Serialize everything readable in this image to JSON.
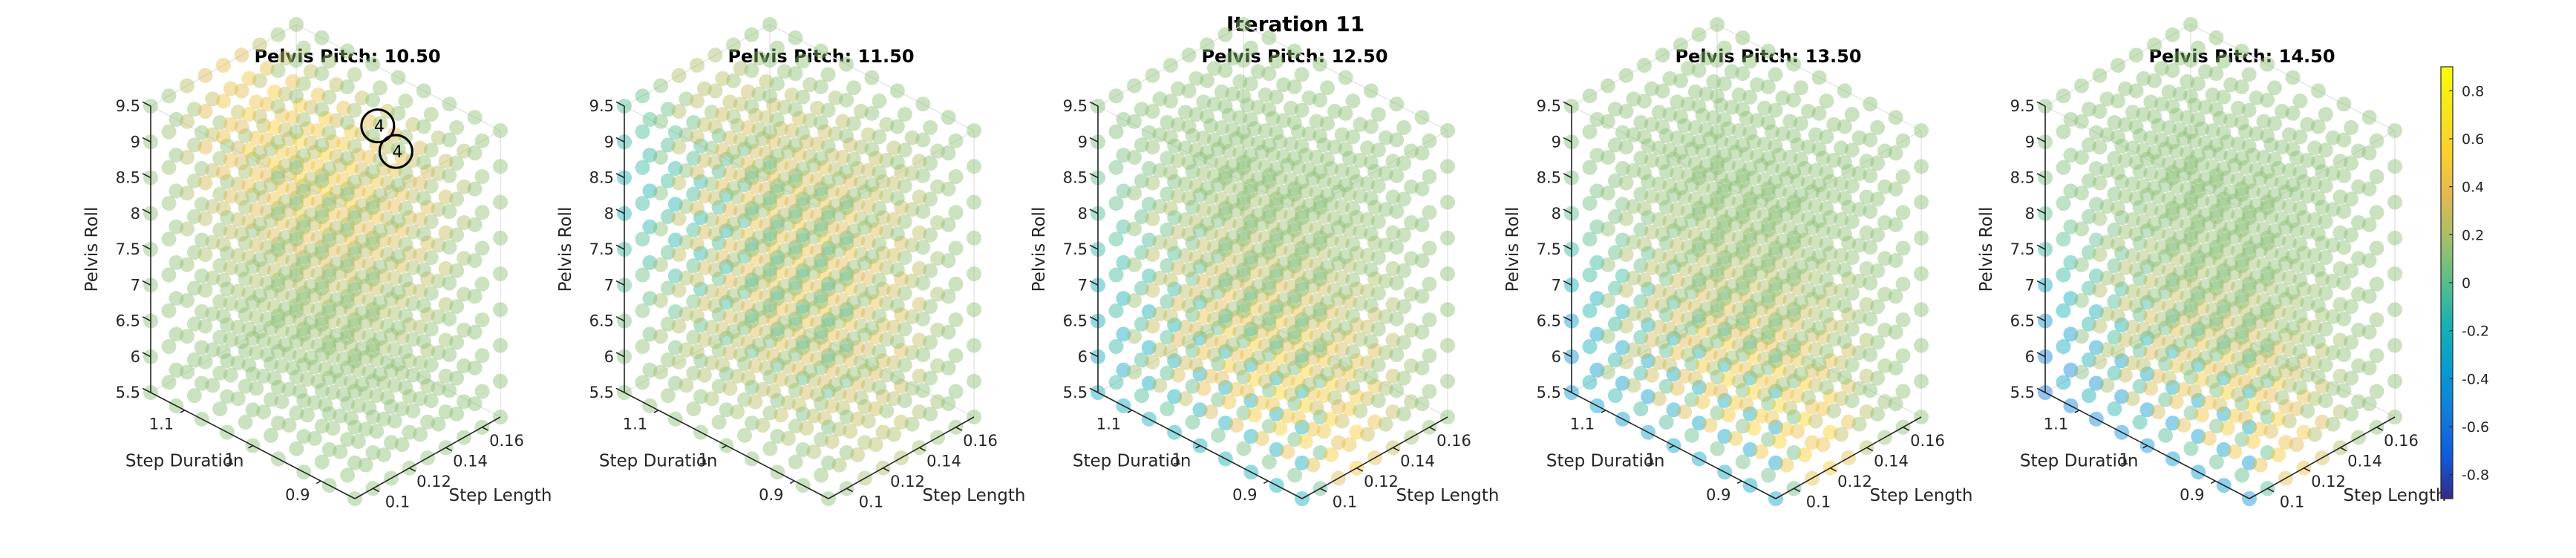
{
  "figure_title": "Iteration 11",
  "colors": {
    "colormap": "parula",
    "marker_alpha": 0.45,
    "axis": "#262626",
    "grid": "#e6e6e6"
  },
  "chart_data": [
    {
      "type": "scatter3d",
      "title": "Pelvis Pitch: 10.50",
      "xlabel": "Step Length",
      "ylabel": "Step Duration",
      "zlabel": "Pelvis Roll",
      "x_ticks": [
        "0.1",
        "0.12",
        "0.14",
        "0.16"
      ],
      "y_ticks": [
        "0.9",
        "1",
        "1.1"
      ],
      "z_ticks": [
        "5.5",
        "6",
        "6.5",
        "7",
        "7.5",
        "8",
        "8.5",
        "9",
        "9.5"
      ],
      "xlim": [
        0.09,
        0.17
      ],
      "ylim": [
        0.85,
        1.15
      ],
      "zlim": [
        5.5,
        9.5
      ],
      "grid_size": [
        9,
        9,
        9
      ],
      "value_field": {
        "base": 0.12,
        "amp": 0.45,
        "u": 0.5,
        "v": 0.6,
        "w": 0.85,
        "su": 0.18,
        "sv": 0.5,
        "sw": 0.3
      },
      "annotations": [
        {
          "text": "4",
          "x": 0.14,
          "y": 0.95,
          "z": 9.5
        },
        {
          "text": "4",
          "x": 0.15,
          "y": 0.95,
          "z": 9.0
        }
      ]
    },
    {
      "type": "scatter3d",
      "title": "Pelvis Pitch: 11.50",
      "xlabel": "Step Length",
      "ylabel": "Step Duration",
      "zlabel": "Pelvis Roll",
      "x_ticks": [
        "0.1",
        "0.12",
        "0.14",
        "0.16"
      ],
      "y_ticks": [
        "0.9",
        "1",
        "1.1"
      ],
      "z_ticks": [
        "5.5",
        "6",
        "6.5",
        "7",
        "7.5",
        "8",
        "8.5",
        "9",
        "9.5"
      ],
      "xlim": [
        0.09,
        0.17
      ],
      "ylim": [
        0.85,
        1.15
      ],
      "zlim": [
        5.5,
        9.5
      ],
      "grid_size": [
        9,
        9,
        9
      ],
      "value_field": {
        "base": 0.12,
        "amp": 0.38,
        "u": 0.45,
        "v": 0.45,
        "w": 0.55,
        "su": 0.18,
        "sv": 0.5,
        "sw": 0.4,
        "cold": {
          "amp": -0.3,
          "u": 0.0,
          "w": 0.7,
          "su": 0.2,
          "sw": 0.25
        }
      },
      "annotations": []
    },
    {
      "type": "scatter3d",
      "title": "Pelvis Pitch: 12.50",
      "xlabel": "Step Length",
      "ylabel": "Step Duration",
      "zlabel": "Pelvis Roll",
      "x_ticks": [
        "0.1",
        "0.12",
        "0.14",
        "0.16"
      ],
      "y_ticks": [
        "0.9",
        "1",
        "1.1"
      ],
      "z_ticks": [
        "5.5",
        "6",
        "6.5",
        "7",
        "7.5",
        "8",
        "8.5",
        "9",
        "9.5"
      ],
      "xlim": [
        0.09,
        0.17
      ],
      "ylim": [
        0.85,
        1.15
      ],
      "zlim": [
        5.5,
        9.5
      ],
      "grid_size": [
        9,
        9,
        9
      ],
      "value_field": {
        "base": 0.12,
        "amp": 0.5,
        "u": 0.35,
        "v": 0.3,
        "w": 0.15,
        "su": 0.2,
        "sv": 0.5,
        "sw": 0.3,
        "cold": {
          "amp": -0.45,
          "u": 0.0,
          "w": 0.15,
          "su": 0.15,
          "sw": 0.35
        }
      },
      "annotations": []
    },
    {
      "type": "scatter3d",
      "title": "Pelvis Pitch: 13.50",
      "xlabel": "Step Length",
      "ylabel": "Step Duration",
      "zlabel": "Pelvis Roll",
      "x_ticks": [
        "0.1",
        "0.12",
        "0.14",
        "0.16"
      ],
      "y_ticks": [
        "0.9",
        "1",
        "1.1"
      ],
      "z_ticks": [
        "5.5",
        "6",
        "6.5",
        "7",
        "7.5",
        "8",
        "8.5",
        "9",
        "9.5"
      ],
      "xlim": [
        0.09,
        0.17
      ],
      "ylim": [
        0.85,
        1.15
      ],
      "zlim": [
        5.5,
        9.5
      ],
      "grid_size": [
        9,
        9,
        9
      ],
      "value_field": {
        "base": 0.12,
        "amp": 0.55,
        "u": 0.3,
        "v": 0.25,
        "w": 0.12,
        "su": 0.2,
        "sv": 0.5,
        "sw": 0.28,
        "cold": {
          "amp": -0.6,
          "u": 0.0,
          "w": 0.1,
          "su": 0.15,
          "sw": 0.3
        }
      },
      "annotations": []
    },
    {
      "type": "scatter3d",
      "title": "Pelvis Pitch: 14.50",
      "xlabel": "Step Length",
      "ylabel": "Step Duration",
      "zlabel": "Pelvis Roll",
      "x_ticks": [
        "0.1",
        "0.12",
        "0.14",
        "0.16"
      ],
      "y_ticks": [
        "0.9",
        "1",
        "1.1"
      ],
      "z_ticks": [
        "5.5",
        "6",
        "6.5",
        "7",
        "7.5",
        "8",
        "8.5",
        "9",
        "9.5"
      ],
      "xlim": [
        0.09,
        0.17
      ],
      "ylim": [
        0.85,
        1.15
      ],
      "zlim": [
        5.5,
        9.5
      ],
      "grid_size": [
        9,
        9,
        9
      ],
      "value_field": {
        "base": 0.12,
        "amp": 0.55,
        "u": 0.25,
        "v": 0.25,
        "w": 0.1,
        "su": 0.2,
        "sv": 0.5,
        "sw": 0.25,
        "cold": {
          "amp": -0.75,
          "u": 0.0,
          "w": 0.05,
          "su": 0.15,
          "sw": 0.3
        }
      }
    }
  ],
  "colorbar": {
    "range": [
      -0.9,
      0.9
    ],
    "ticks": [
      "0.8",
      "0.6",
      "0.4",
      "0.2",
      "0",
      "-0.2",
      "-0.4",
      "-0.6",
      "-0.8"
    ],
    "tick_values": [
      0.8,
      0.6,
      0.4,
      0.2,
      0,
      -0.2,
      -0.4,
      -0.6,
      -0.8
    ]
  }
}
